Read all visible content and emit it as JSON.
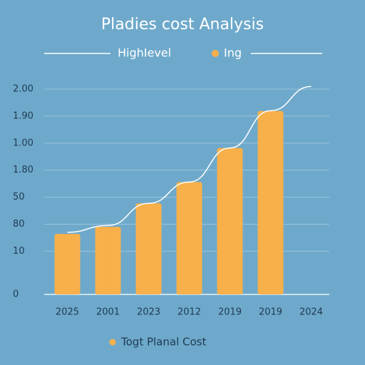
{
  "chart_data": {
    "type": "bar",
    "title": "Pladies cost Analysis",
    "categories": [
      "2025",
      "2001",
      "2023",
      "2012",
      "2019",
      "2019",
      "2024"
    ],
    "series": [
      {
        "name": "HighIevel",
        "color": "#ffffff",
        "kind": "line",
        "values": [
          2.3,
          2.55,
          3.37,
          4.16,
          5.42,
          6.8,
          7.7
        ]
      },
      {
        "name": "Ing",
        "color": "#f8b04a",
        "kind": "bar",
        "values": [
          2.24,
          2.5,
          3.37,
          4.16,
          5.42,
          6.79,
          null
        ]
      }
    ],
    "footer_legend": "Togt Planal Cost",
    "ylim": [
      0,
      7.8
    ],
    "yticks": [
      0,
      {
        "value": 1.6,
        "label": "10"
      },
      {
        "value": 2.6,
        "label": "80"
      },
      {
        "value": 3.6,
        "label": "50"
      },
      {
        "value": 4.6,
        "label": "1.80"
      },
      {
        "value": 5.6,
        "label": "1.00"
      },
      {
        "value": 6.6,
        "label": "1.90"
      },
      {
        "value": 7.6,
        "label": "2.00"
      }
    ],
    "grid": true
  }
}
